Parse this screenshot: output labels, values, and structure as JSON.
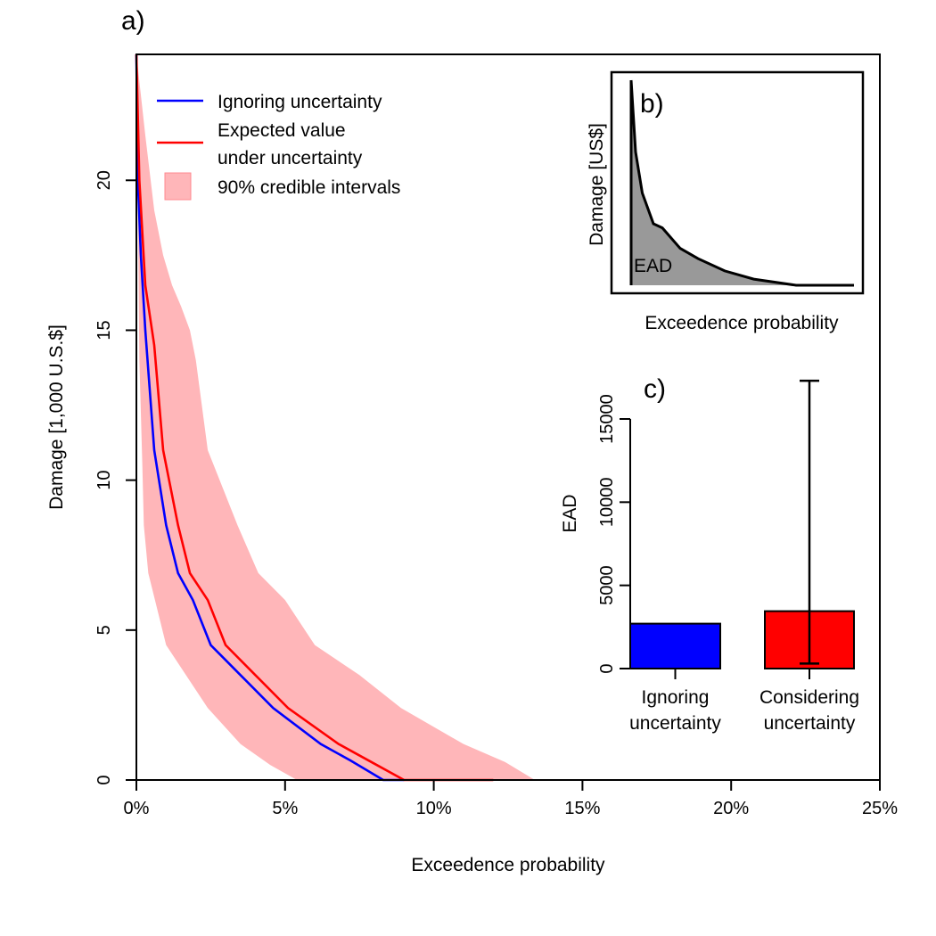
{
  "chart_data": [
    {
      "panel": "a)",
      "type": "line",
      "xlabel": "Exceedence probability",
      "ylabel": "Damage [1,000 U.S.$]",
      "xlim": [
        0,
        25
      ],
      "ylim": [
        0,
        24.2
      ],
      "x_ticks": [
        0,
        5,
        10,
        15,
        20,
        25
      ],
      "x_tick_labels": [
        "0%",
        "5%",
        "10%",
        "15%",
        "20%",
        "25%"
      ],
      "y_ticks": [
        0,
        5,
        10,
        15,
        20
      ],
      "y_tick_labels": [
        "0",
        "5",
        "10",
        "15",
        "20"
      ],
      "legend": {
        "position": "top-left",
        "entries": [
          "Ignoring uncertainty",
          "Expected value",
          "under uncertainty",
          "90% credible intervals"
        ]
      },
      "series": [
        {
          "name": "Ignoring uncertainty",
          "color": "#0000ff",
          "points": [
            [
              0.0,
              24.2
            ],
            [
              0.05,
              20.0
            ],
            [
              0.15,
              17.5
            ],
            [
              0.3,
              15.0
            ],
            [
              0.6,
              11.0
            ],
            [
              1.0,
              8.5
            ],
            [
              1.4,
              6.9
            ],
            [
              1.9,
              6.0
            ],
            [
              2.5,
              4.5
            ],
            [
              3.5,
              3.5
            ],
            [
              4.6,
              2.4
            ],
            [
              6.2,
              1.2
            ],
            [
              7.2,
              0.65
            ],
            [
              8.3,
              0.0
            ],
            [
              9.0,
              0.0
            ]
          ]
        },
        {
          "name": "Expected value under uncertainty",
          "color": "#ff0000",
          "points": [
            [
              0.0,
              24.2
            ],
            [
              0.1,
              20.0
            ],
            [
              0.3,
              16.5
            ],
            [
              0.6,
              14.5
            ],
            [
              0.9,
              11.0
            ],
            [
              1.4,
              8.5
            ],
            [
              1.8,
              6.9
            ],
            [
              2.4,
              6.0
            ],
            [
              3.0,
              4.5
            ],
            [
              4.0,
              3.5
            ],
            [
              5.1,
              2.4
            ],
            [
              6.8,
              1.2
            ],
            [
              7.9,
              0.6
            ],
            [
              9.0,
              0.0
            ],
            [
              12.0,
              0.0
            ]
          ]
        }
      ],
      "credible_interval": {
        "name": "90% credible intervals",
        "color": "#ffb6b9",
        "upper": [
          [
            0.0,
            24.2
          ],
          [
            0.3,
            21.5
          ],
          [
            0.6,
            19.0
          ],
          [
            0.9,
            17.5
          ],
          [
            1.2,
            16.5
          ],
          [
            1.5,
            15.8
          ],
          [
            1.8,
            15.0
          ],
          [
            2.0,
            14.0
          ],
          [
            2.4,
            11.0
          ],
          [
            3.4,
            8.5
          ],
          [
            4.1,
            6.9
          ],
          [
            5.0,
            6.0
          ],
          [
            6.0,
            4.5
          ],
          [
            7.5,
            3.5
          ],
          [
            8.9,
            2.4
          ],
          [
            11.0,
            1.2
          ],
          [
            12.4,
            0.6
          ],
          [
            13.4,
            0.0
          ]
        ],
        "lower": [
          [
            0.0,
            24.2
          ],
          [
            0.1,
            14.0
          ],
          [
            0.2,
            10.5
          ],
          [
            0.25,
            8.5
          ],
          [
            0.4,
            6.9
          ],
          [
            1.0,
            4.5
          ],
          [
            2.4,
            2.4
          ],
          [
            3.5,
            1.2
          ],
          [
            4.5,
            0.5
          ],
          [
            5.4,
            0.0
          ]
        ]
      }
    },
    {
      "panel": "b)",
      "type": "area",
      "xlabel": "Exceedence probability",
      "ylabel": "Damage [US$]",
      "annotation": "EAD",
      "color": "#999999",
      "points": [
        [
          0.0,
          1.0
        ],
        [
          0.02,
          0.65
        ],
        [
          0.05,
          0.45
        ],
        [
          0.1,
          0.3
        ],
        [
          0.14,
          0.28
        ],
        [
          0.22,
          0.18
        ],
        [
          0.3,
          0.13
        ],
        [
          0.42,
          0.07
        ],
        [
          0.55,
          0.03
        ],
        [
          0.74,
          0.0
        ],
        [
          1.0,
          0.0
        ]
      ]
    },
    {
      "panel": "c)",
      "type": "bar",
      "ylabel": "EAD",
      "ylim": [
        0,
        16000
      ],
      "y_ticks": [
        0,
        5000,
        10000,
        15000
      ],
      "y_tick_labels": [
        "0",
        "5000",
        "10000",
        "15000"
      ],
      "categories": [
        {
          "line1": "Ignoring",
          "line2": "uncertainty"
        },
        {
          "line1": "Considering",
          "line2": "uncertainty"
        }
      ],
      "values": [
        2700,
        3450
      ],
      "colors": [
        "#0000ff",
        "#ff0000"
      ],
      "error_bars": [
        null,
        {
          "low": 300,
          "high": 17300
        }
      ]
    }
  ]
}
